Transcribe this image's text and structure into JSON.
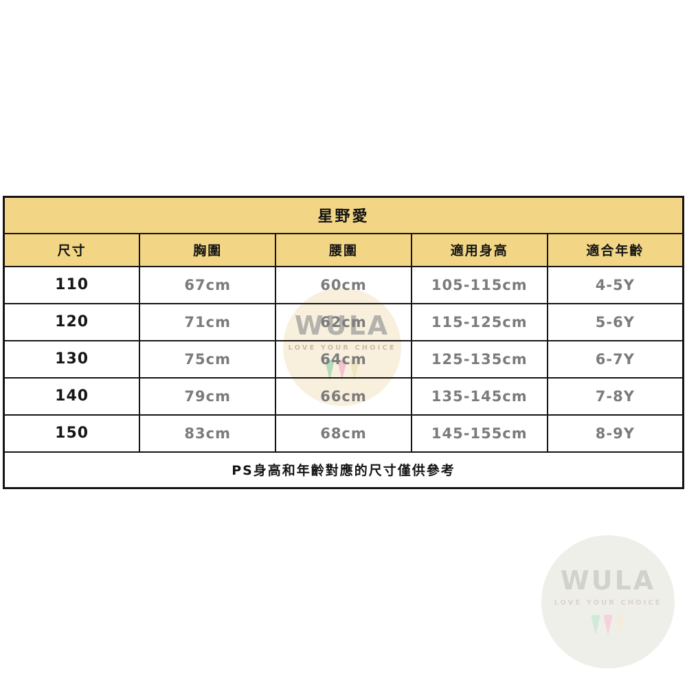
{
  "table": {
    "title": "星野愛",
    "columns": [
      "尺寸",
      "胸圍",
      "腰圍",
      "適用身高",
      "適合年齡"
    ],
    "rows": [
      [
        "110",
        "67cm",
        "60cm",
        "105-115cm",
        "4-5Y"
      ],
      [
        "120",
        "71cm",
        "62cm",
        "115-125cm",
        "5-6Y"
      ],
      [
        "130",
        "75cm",
        "64cm",
        "125-135cm",
        "6-7Y"
      ],
      [
        "140",
        "79cm",
        "66cm",
        "135-145cm",
        "7-8Y"
      ],
      [
        "150",
        "83cm",
        "68cm",
        "145-155cm",
        "8-9Y"
      ]
    ],
    "footnote": "PS身高和年齡對應的尺寸僅供參考"
  },
  "watermark": {
    "brand": "WULA",
    "tagline": "LOVE YOUR CHOICE"
  },
  "colors": {
    "header_bg": "#F3D685",
    "border": "#141414",
    "size_text": "#161616",
    "value_text": "#7B7B7B",
    "wm_circle_center": "#F8EFDB",
    "wm_circle_corner": "#EEEEE8"
  }
}
